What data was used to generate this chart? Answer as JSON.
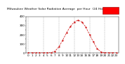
{
  "title": "Milwaukee Weather Solar Radiation Average  per Hour  (24 Hours)",
  "hours": [
    0,
    1,
    2,
    3,
    4,
    5,
    6,
    7,
    8,
    9,
    10,
    11,
    12,
    13,
    14,
    15,
    16,
    17,
    18,
    19,
    20,
    21,
    22,
    23
  ],
  "solar": [
    0,
    0,
    0,
    0,
    0,
    0,
    2,
    18,
    65,
    140,
    220,
    290,
    340,
    360,
    340,
    285,
    200,
    120,
    45,
    10,
    1,
    0,
    0,
    0
  ],
  "ylim": [
    0,
    400
  ],
  "xlim": [
    -0.5,
    23.5
  ],
  "line_color": "#cc0000",
  "marker_color": "#cc0000",
  "grid_color": "#aaaaaa",
  "bg_color": "#ffffff",
  "tick_fontsize": 3.0,
  "title_fontsize": 3.2,
  "ytick_labels": [
    "0",
    "",
    "100",
    "",
    "200",
    "",
    "300",
    "",
    "400"
  ],
  "ytick_vals": [
    0,
    50,
    100,
    150,
    200,
    250,
    300,
    350,
    400
  ],
  "legend_color": "#ff0000",
  "legend_color2": "#ffbbbb"
}
